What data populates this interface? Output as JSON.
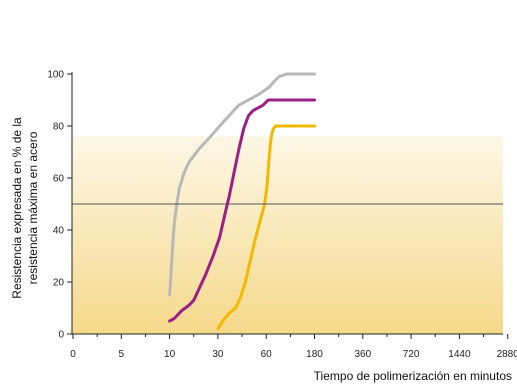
{
  "chart_data": {
    "type": "line",
    "title": "",
    "xlabel": "Tiempo de polimerización en minutos",
    "ylabel_lines": [
      "Resistencia expresada en % de la",
      "resistencia máxima en acero"
    ],
    "x_scale": "categorical (log-like time)",
    "categories": [
      "0",
      "5",
      "10",
      "30",
      "60",
      "180",
      "360",
      "720",
      "1440",
      "2880"
    ],
    "ylim": [
      0,
      100
    ],
    "yticks": [
      "0",
      "20",
      "40",
      "60",
      "80",
      "100"
    ],
    "reference_line": {
      "y": 50,
      "color": "#555555"
    },
    "background": {
      "type": "gradient",
      "from_y": 0,
      "to_y": 76,
      "bottom_color": "#f5d98a",
      "top_color": "#fdf7e6"
    },
    "grid": false,
    "legend": "none",
    "series": [
      {
        "color": "#b8b8b8",
        "points": [
          [
            10,
            15
          ],
          [
            10.5,
            22
          ],
          [
            11,
            30
          ],
          [
            11.5,
            37
          ],
          [
            12,
            43
          ],
          [
            13,
            50
          ],
          [
            14,
            56
          ],
          [
            16,
            62
          ],
          [
            18,
            66
          ],
          [
            22,
            71
          ],
          [
            27,
            76
          ],
          [
            34,
            82
          ],
          [
            43,
            88
          ],
          [
            55,
            92
          ],
          [
            68,
            95
          ],
          [
            79,
            97
          ],
          [
            92,
            99
          ],
          [
            110,
            100
          ],
          [
            130,
            100
          ],
          [
            180,
            100
          ]
        ]
      },
      {
        "color": "#9b1f86",
        "points": [
          [
            10,
            5
          ],
          [
            12,
            6
          ],
          [
            15,
            9
          ],
          [
            18,
            11
          ],
          [
            20,
            13
          ],
          [
            22,
            17
          ],
          [
            25,
            23
          ],
          [
            28,
            30
          ],
          [
            31,
            37
          ],
          [
            34,
            45
          ],
          [
            37,
            53
          ],
          [
            40,
            62
          ],
          [
            43,
            71
          ],
          [
            46,
            79
          ],
          [
            49,
            84
          ],
          [
            52,
            86
          ],
          [
            58,
            88
          ],
          [
            65,
            90
          ],
          [
            80,
            90
          ],
          [
            100,
            90
          ],
          [
            180,
            90
          ]
        ]
      },
      {
        "color": "#f5b800",
        "points": [
          [
            30,
            2
          ],
          [
            33,
            5
          ],
          [
            37,
            8
          ],
          [
            41,
            10
          ],
          [
            44,
            14
          ],
          [
            47,
            20
          ],
          [
            50,
            28
          ],
          [
            53,
            36
          ],
          [
            56,
            43
          ],
          [
            59,
            50
          ],
          [
            62,
            57
          ],
          [
            65,
            63
          ],
          [
            68,
            69
          ],
          [
            71,
            74
          ],
          [
            74,
            77
          ],
          [
            78,
            79
          ],
          [
            83,
            80
          ],
          [
            90,
            80
          ],
          [
            100,
            80
          ],
          [
            120,
            80
          ],
          [
            180,
            80
          ]
        ]
      }
    ]
  }
}
